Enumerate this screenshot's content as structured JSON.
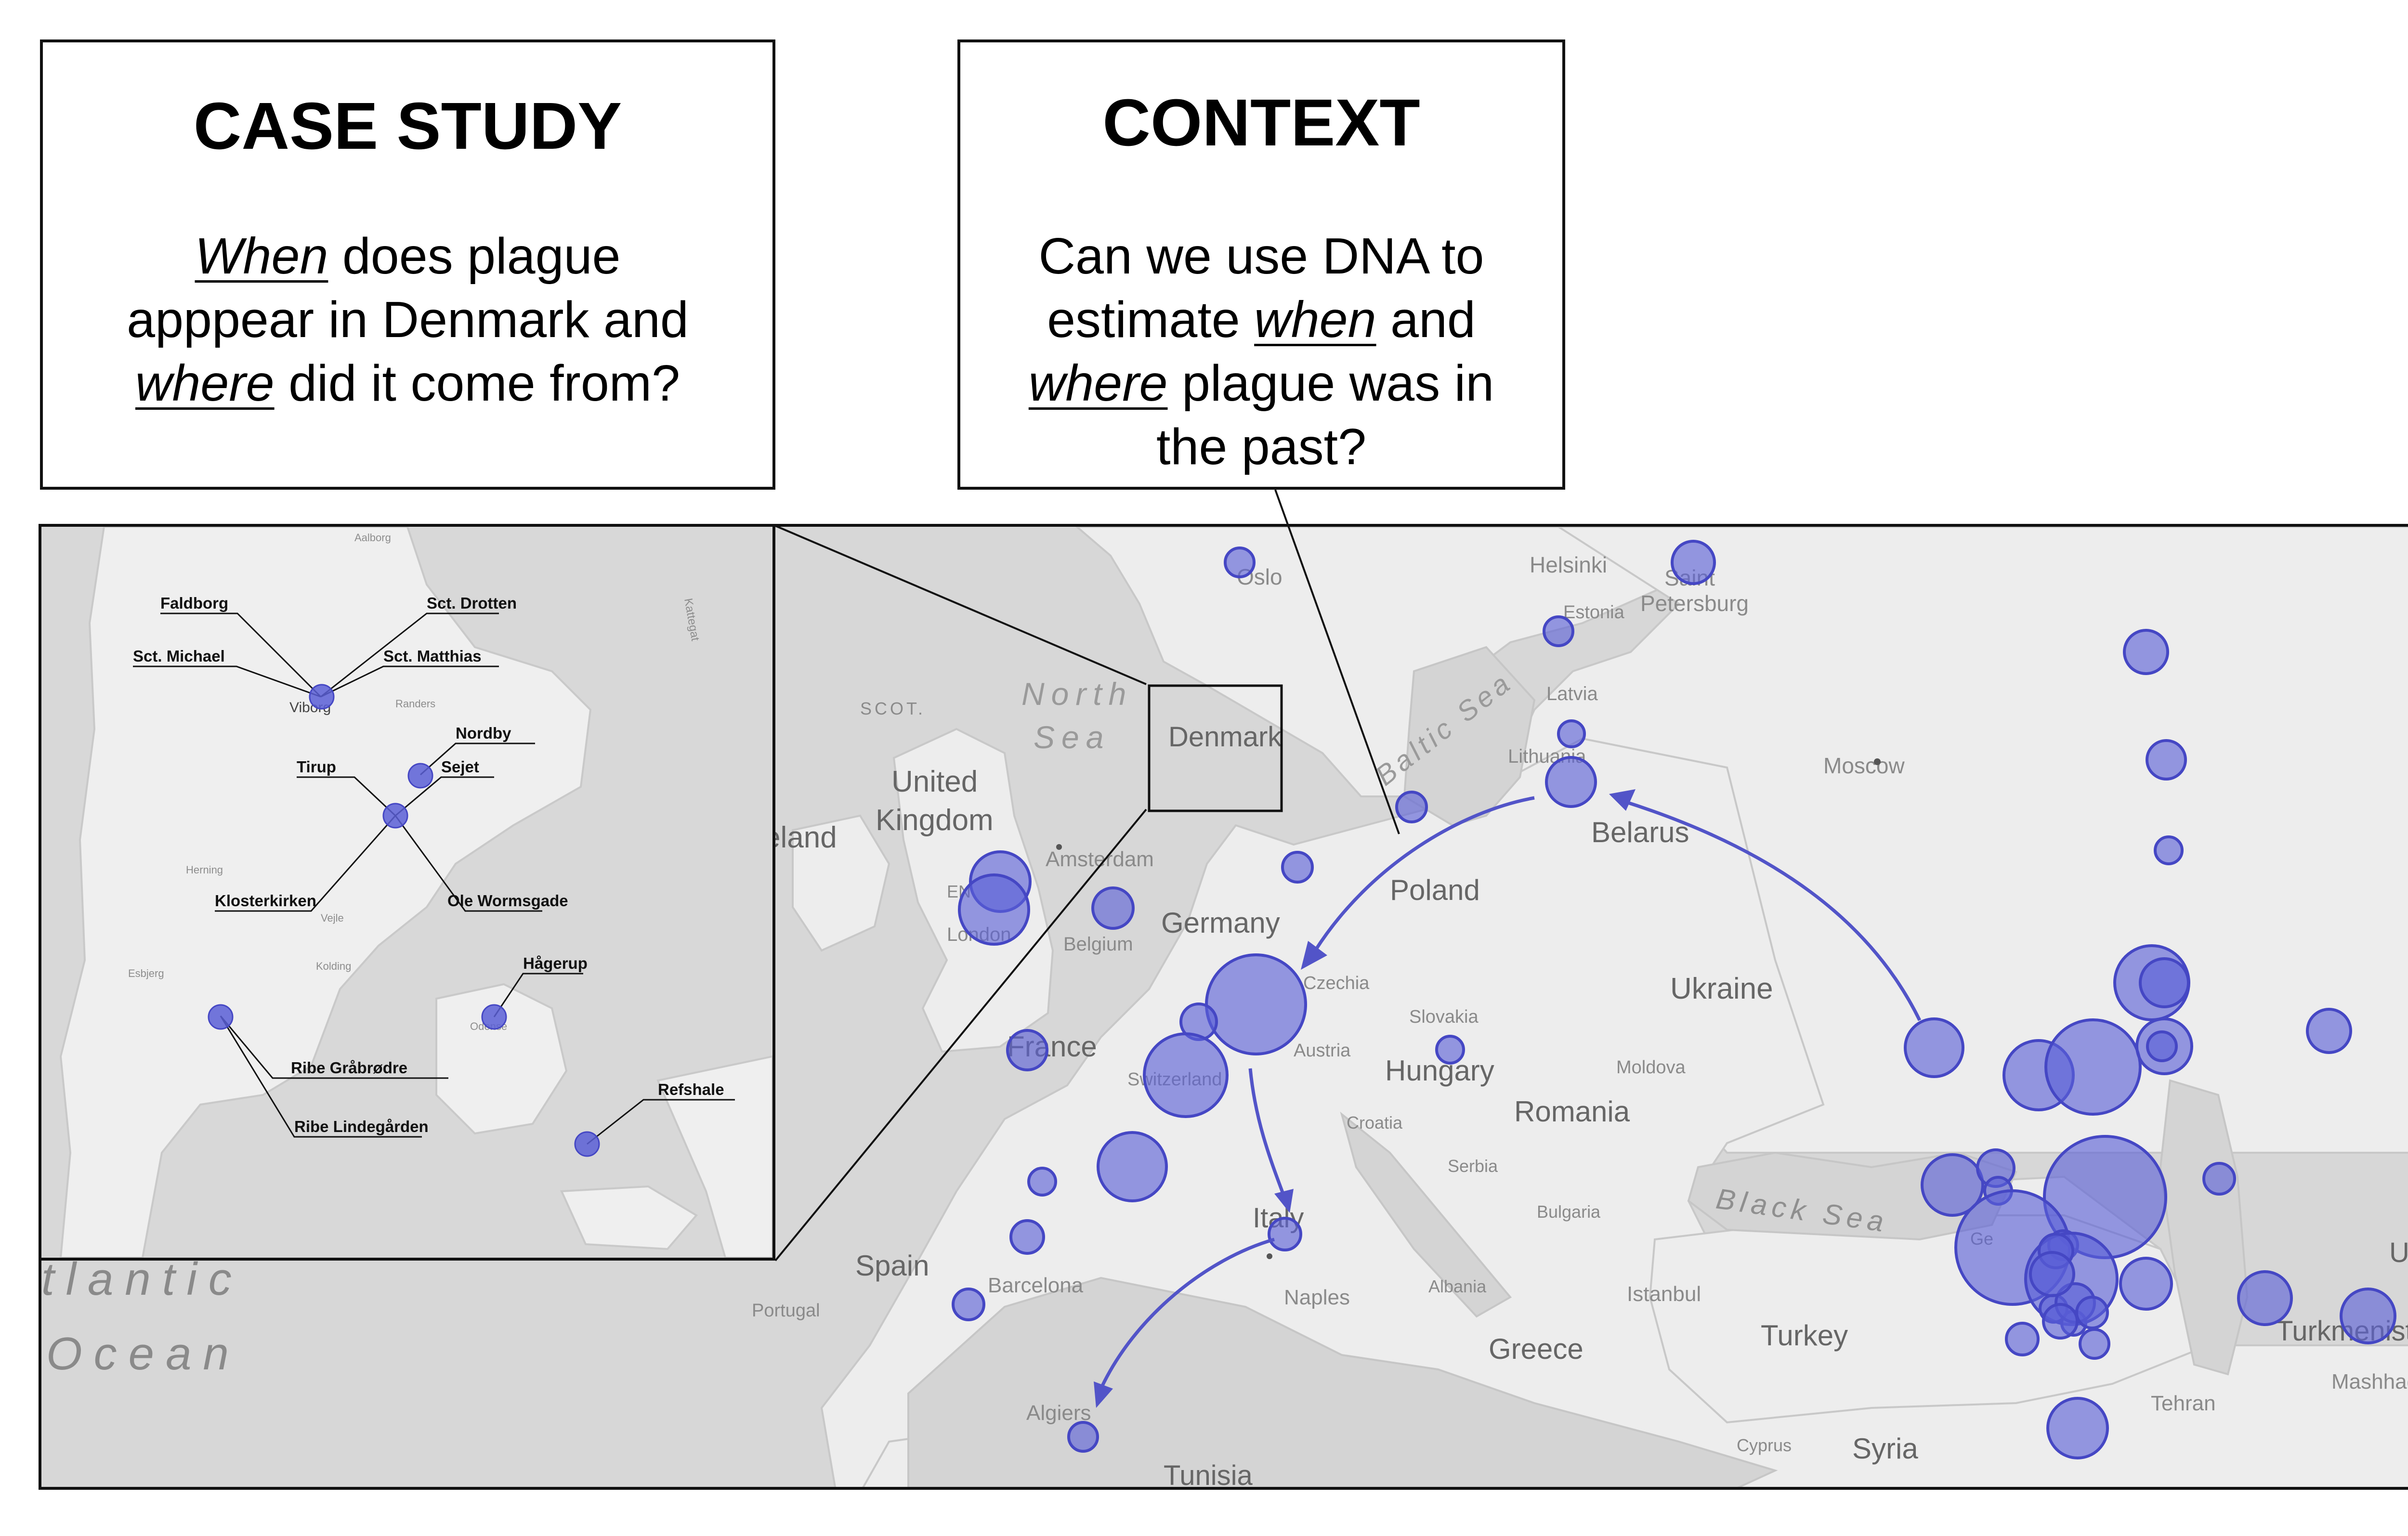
{
  "case_study": {
    "title": "CASE STUDY",
    "q_em1": "When",
    "q_l1_rest": " does plague",
    "q_l2": "apppear in Denmark and",
    "q_em2": "where",
    "q_l3_rest": " did it come from?"
  },
  "context": {
    "title": "CONTEXT",
    "q_l1": "Can we use DNA to",
    "q_l2_pre": "estimate ",
    "q_em1": "when",
    "q_l2_post": " and",
    "q_em2": "where",
    "q_l3_rest": " plague was in",
    "q_l4": "the past?"
  },
  "colors": {
    "marker_fill": "#5b5fd6",
    "marker_stroke": "#4547c4",
    "arrow": "#5254c8",
    "land": "#ededed",
    "sea": "#d4d4d4"
  },
  "map_labels": {
    "oslo": "Oslo",
    "helsinki": "Helsinki",
    "saint": "Saint",
    "petersburg": "Petersburg",
    "estonia": "Estonia",
    "latvia": "Latvia",
    "lithuania": "Lithuania",
    "moscow": "Moscow",
    "belarus": "Belarus",
    "north": "North",
    "sea": "Sea",
    "baltic_sea": "Baltic Sea",
    "denmark": "Denmark",
    "united": "United",
    "kingdom": "Kingdom",
    "ireland": "eland",
    "scot": "SCOT.",
    "eng": "EN",
    "amsterdam": "Amsterdam",
    "london": "London",
    "belgium": "Belgium",
    "germany": "Germany",
    "poland": "Poland",
    "ukraine": "Ukraine",
    "czechia": "Czechia",
    "slovakia": "Slovakia",
    "austria": "Austria",
    "hungary": "Hungary",
    "moldova": "Moldova",
    "romania": "Romania",
    "france": "France",
    "switzerland": "Switzerland",
    "croatia": "Croatia",
    "serbia": "Serbia",
    "bulgaria": "Bulgaria",
    "black_sea": "Black Sea",
    "italy": "Italy",
    "spain": "Spain",
    "barcelona": "Barcelona",
    "portugal": "Portugal",
    "naples": "Naples",
    "albania": "Albania",
    "istanbul": "Istanbul",
    "greece": "Greece",
    "turkey": "Turkey",
    "algiers": "Algiers",
    "tunisia": "Tunisia",
    "cyprus": "Cyprus",
    "syria": "Syria",
    "tehran": "Tehran",
    "mashhad": "Mashhad",
    "turkmenist": "Turkmenist",
    "uzb": "Uzb",
    "ge": "Ge",
    "atlantic": "tlantic",
    "ocean": "Ocean"
  },
  "inset_labels": {
    "aalborg": "Aalborg",
    "kattegat": "Kattegat",
    "viborg": "Viborg",
    "randers": "Randers",
    "herning": "Herning",
    "vejle": "Vejle",
    "kolding": "Kolding",
    "esbjerg": "Esbjerg",
    "odense": "Odense"
  },
  "inset_sites": {
    "faldborg": "Faldborg",
    "sct_drotten": "Sct. Drotten",
    "sct_michael": "Sct. Michael",
    "sct_matthias": "Sct. Matthias",
    "nordby": "Nordby",
    "tirup": "Tirup",
    "sejet": "Sejet",
    "klosterkirken": "Klosterkirken",
    "ole_wormsgade": "Ole Wormsgade",
    "hagerup": "Hågerup",
    "ribe_grabrodre": "Ribe Gråbrødre",
    "ribe_lindegarden": "Ribe Lindegården",
    "refshale": "Refshale"
  }
}
